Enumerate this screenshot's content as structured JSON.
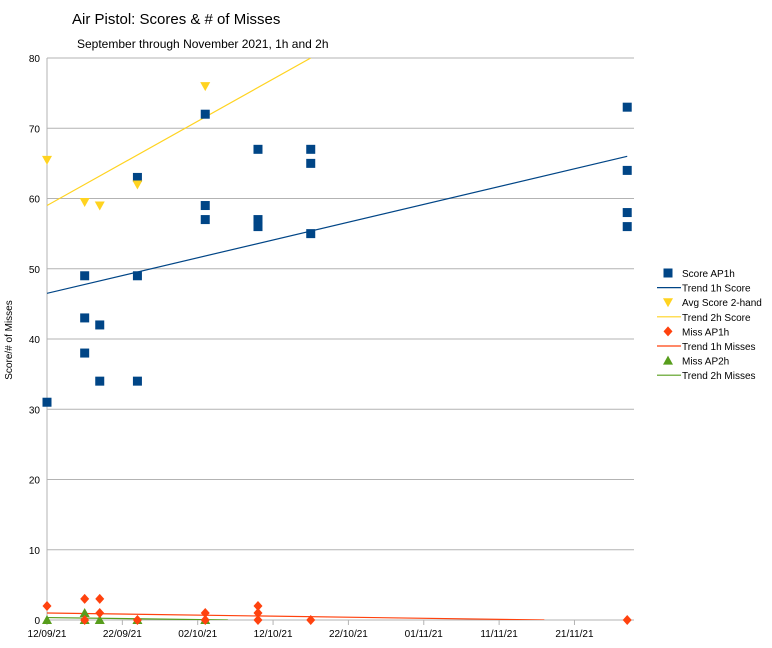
{
  "chart_data": {
    "type": "scatter",
    "title": "Air Pistol: Scores & # of Misses",
    "subtitle": "September through November 2021, 1h and 2h",
    "ylabel": "Score/# of Misses",
    "xlabel": "",
    "ylim": [
      0,
      80
    ],
    "yticks": [
      0,
      10,
      20,
      30,
      40,
      50,
      60,
      70,
      80
    ],
    "xrange_days": [
      0,
      77.9
    ],
    "x_origin": "12/09/21",
    "xticks": [
      {
        "day": 0,
        "label": "12/09/21"
      },
      {
        "day": 10,
        "label": "22/09/21"
      },
      {
        "day": 20,
        "label": "02/10/21"
      },
      {
        "day": 30,
        "label": "12/10/21"
      },
      {
        "day": 40,
        "label": "22/10/21"
      },
      {
        "day": 50,
        "label": "01/11/21"
      },
      {
        "day": 60,
        "label": "11/11/21"
      },
      {
        "day": 70,
        "label": "21/11/21"
      }
    ],
    "grid": "horizontal",
    "legend_position": "right",
    "series": [
      {
        "name": "Score AP1h",
        "kind": "square",
        "color": "#004586",
        "points": [
          [
            0,
            31
          ],
          [
            5,
            49
          ],
          [
            5,
            43
          ],
          [
            5,
            38
          ],
          [
            7,
            42
          ],
          [
            7,
            34
          ],
          [
            12,
            63
          ],
          [
            12,
            49
          ],
          [
            12,
            34
          ],
          [
            21,
            72
          ],
          [
            21,
            59
          ],
          [
            21,
            57
          ],
          [
            28,
            67
          ],
          [
            28,
            57
          ],
          [
            28,
            56
          ],
          [
            35,
            67
          ],
          [
            35,
            65
          ],
          [
            35,
            55
          ],
          [
            77,
            73
          ],
          [
            77,
            64
          ],
          [
            77,
            58
          ],
          [
            77,
            56
          ]
        ]
      },
      {
        "name": "Trend 1h Score",
        "kind": "line",
        "color": "#004586",
        "points": [
          [
            0,
            46.5
          ],
          [
            77,
            66
          ]
        ]
      },
      {
        "name": "Avg Score 2-hand",
        "kind": "triangle-down",
        "color": "#ffd320",
        "points": [
          [
            0,
            65.5
          ],
          [
            5,
            59.5
          ],
          [
            7,
            59
          ],
          [
            12,
            62
          ],
          [
            21,
            76
          ]
        ]
      },
      {
        "name": "Trend 2h Score",
        "kind": "line",
        "color": "#ffd320",
        "points": [
          [
            0,
            59
          ],
          [
            35,
            80
          ]
        ]
      },
      {
        "name": "Miss AP1h",
        "kind": "diamond",
        "color": "#ff420e",
        "points": [
          [
            0,
            2
          ],
          [
            5,
            3
          ],
          [
            5,
            0
          ],
          [
            7,
            3
          ],
          [
            7,
            1
          ],
          [
            12,
            0
          ],
          [
            21,
            1
          ],
          [
            21,
            0
          ],
          [
            28,
            2
          ],
          [
            28,
            1
          ],
          [
            28,
            0
          ],
          [
            35,
            0
          ],
          [
            77,
            0
          ]
        ]
      },
      {
        "name": "Trend 1h Misses",
        "kind": "line",
        "color": "#ff420e",
        "points": [
          [
            0,
            1.0
          ],
          [
            66,
            0
          ]
        ]
      },
      {
        "name": "Miss AP2h",
        "kind": "triangle-up",
        "color": "#579d1c",
        "points": [
          [
            0,
            0
          ],
          [
            5,
            1
          ],
          [
            5,
            0
          ],
          [
            7,
            0
          ],
          [
            12,
            0
          ],
          [
            21,
            0
          ]
        ]
      },
      {
        "name": "Trend 2h Misses",
        "kind": "line",
        "color": "#579d1c",
        "points": [
          [
            0,
            0.35
          ],
          [
            24,
            0
          ]
        ]
      }
    ]
  }
}
